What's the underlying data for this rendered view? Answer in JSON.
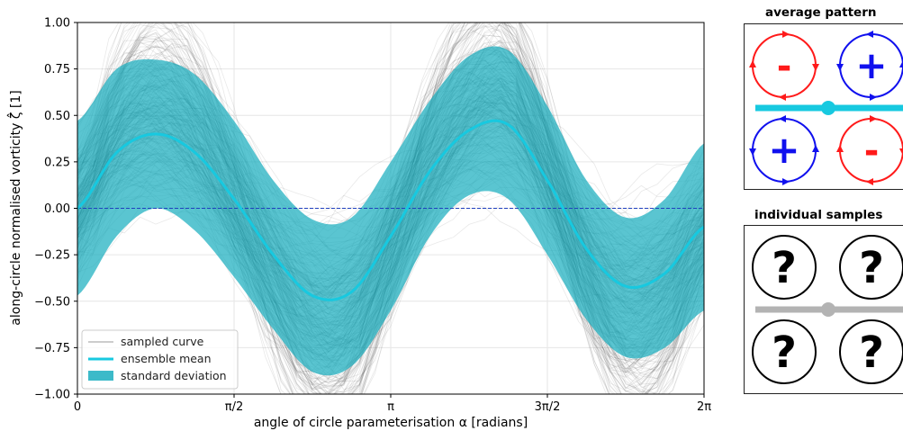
{
  "chart_data": {
    "type": "line",
    "xlabel": "angle of circle parameterisation α [radians]",
    "ylabel": "along-circle normalised vorticity ζ̂ [1]",
    "xlim": [
      0,
      6.2832
    ],
    "ylim": [
      -1.0,
      1.0
    ],
    "xticks": [
      {
        "value": 0,
        "label": "0"
      },
      {
        "value": 1.5708,
        "label": "π/2"
      },
      {
        "value": 3.1416,
        "label": "π"
      },
      {
        "value": 4.7124,
        "label": "3π/2"
      },
      {
        "value": 6.2832,
        "label": "2π"
      }
    ],
    "yticks": [
      {
        "value": -1.0,
        "label": "−1.00"
      },
      {
        "value": -0.75,
        "label": "−0.75"
      },
      {
        "value": -0.5,
        "label": "−0.50"
      },
      {
        "value": -0.25,
        "label": "−0.25"
      },
      {
        "value": 0.0,
        "label": "0.00"
      },
      {
        "value": 0.25,
        "label": "0.25"
      },
      {
        "value": 0.5,
        "label": "0.50"
      },
      {
        "value": 0.75,
        "label": "0.75"
      },
      {
        "value": 1.0,
        "label": "1.00"
      }
    ],
    "grid": true,
    "legend_position": "bottom-left",
    "legend": [
      {
        "label": "sampled curve",
        "style": "thin-line",
        "color": "#999999"
      },
      {
        "label": "ensemble mean",
        "style": "line",
        "color": "#17c9e0"
      },
      {
        "label": "standard deviation",
        "style": "patch",
        "color": "#1aaebf"
      }
    ],
    "zero_line": {
      "y": 0.0,
      "color": "#1f3fbf"
    },
    "series": [
      {
        "name": "ensemble mean",
        "color": "#17c9e0",
        "x": [
          0,
          0.3927,
          0.7854,
          1.1781,
          1.5708,
          1.9635,
          2.3562,
          2.7489,
          3.1416,
          3.5343,
          3.927,
          4.3197,
          4.7124,
          5.1051,
          5.4978,
          5.8905,
          6.2832
        ],
        "y": [
          0.0,
          0.3,
          0.4,
          0.3,
          0.05,
          -0.25,
          -0.47,
          -0.45,
          -0.15,
          0.2,
          0.42,
          0.45,
          0.15,
          -0.22,
          -0.42,
          -0.35,
          -0.1
        ]
      },
      {
        "name": "standard deviation",
        "color": "#1aaebf",
        "x": [
          0,
          0.3927,
          0.7854,
          1.1781,
          1.5708,
          1.9635,
          2.3562,
          2.7489,
          3.1416,
          3.5343,
          3.927,
          4.3197,
          4.7124,
          5.1051,
          5.4978,
          5.8905,
          6.2832
        ],
        "lower": [
          -0.47,
          -0.15,
          0.0,
          -0.12,
          -0.37,
          -0.65,
          -0.88,
          -0.85,
          -0.55,
          -0.15,
          0.07,
          0.05,
          -0.25,
          -0.6,
          -0.8,
          -0.75,
          -0.55
        ],
        "upper": [
          0.47,
          0.75,
          0.8,
          0.72,
          0.47,
          0.15,
          -0.06,
          -0.05,
          0.25,
          0.58,
          0.82,
          0.85,
          0.55,
          0.15,
          -0.05,
          0.05,
          0.35
        ]
      }
    ]
  },
  "panels": {
    "average": {
      "title": "average pattern",
      "circles": [
        {
          "sign": "-",
          "color": "#ff1a1a"
        },
        {
          "sign": "+",
          "color": "#1010ee"
        },
        {
          "sign": "+",
          "color": "#1010ee"
        },
        {
          "sign": "-",
          "color": "#ff1a1a"
        }
      ],
      "slider_color": "#17c9e0"
    },
    "samples": {
      "title": "individual samples",
      "circles": [
        {
          "sign": "?",
          "color": "#000000"
        },
        {
          "sign": "?",
          "color": "#000000"
        },
        {
          "sign": "?",
          "color": "#000000"
        },
        {
          "sign": "?",
          "color": "#000000"
        }
      ],
      "slider_color": "#b3b3b3"
    }
  }
}
